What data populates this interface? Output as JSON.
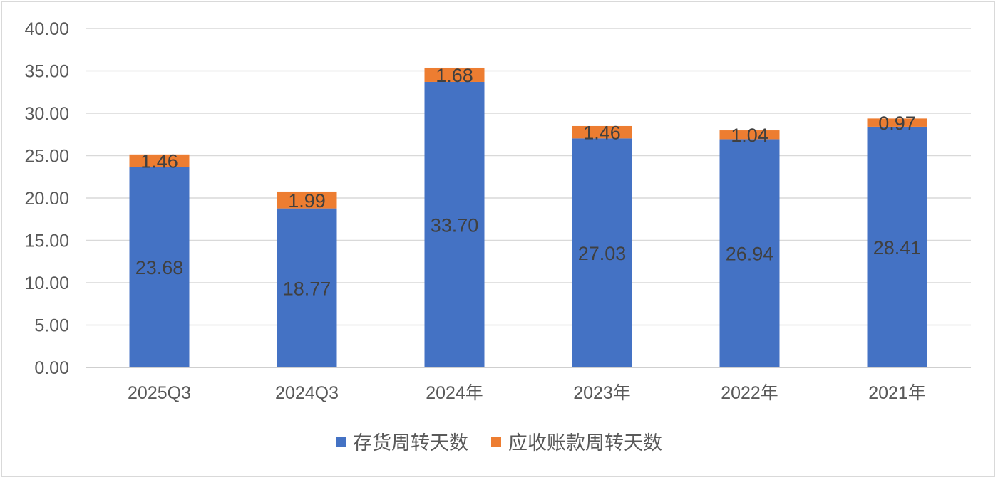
{
  "chart_data": {
    "type": "bar",
    "stacked": true,
    "categories": [
      "2025Q3",
      "2024Q3",
      "2024年",
      "2023年",
      "2022年",
      "2021年"
    ],
    "series": [
      {
        "name": "存货周转天数",
        "color": "#4472C4",
        "values": [
          23.68,
          18.77,
          33.7,
          27.03,
          26.94,
          28.41
        ]
      },
      {
        "name": "应收账款周转天数",
        "color": "#ED7D31",
        "values": [
          1.46,
          1.99,
          1.68,
          1.46,
          1.04,
          0.97
        ]
      }
    ],
    "ylim": [
      0,
      40
    ],
    "yticks": [
      "0.00",
      "5.00",
      "10.00",
      "15.00",
      "20.00",
      "25.00",
      "30.00",
      "35.00",
      "40.00"
    ],
    "grid": true,
    "legend_position": "bottom"
  }
}
